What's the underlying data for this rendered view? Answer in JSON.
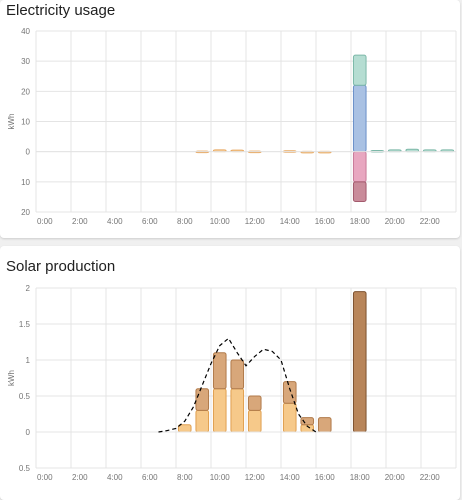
{
  "cards": {
    "electricity": {
      "title": "Electricity usage"
    },
    "solar": {
      "title": "Solar production"
    }
  },
  "colors": {
    "grid_import": "#a9c1e3",
    "grid_import_stroke": "#6a8fc8",
    "solar_consumed": "#b5ddd2",
    "solar_consumed_stroke": "#7cb8a8",
    "grid_export": "#e8a7c0",
    "grid_export_stroke": "#c87a98",
    "battery_in": "#c98b9a",
    "battery_in_stroke": "#a35a6d",
    "home_usage": "#f8d3a0",
    "home_usage_stroke": "#e8a860",
    "solar_total": "#f6c98a",
    "solar_total_stroke": "#e0a050",
    "solar_upper": "#d8a77a",
    "solar_upper_stroke": "#b07a4a",
    "solar_dark": "#b8855a",
    "solar_dark_stroke": "#7d5230",
    "forecast_line": "#000000"
  },
  "chart_data": [
    {
      "type": "bar",
      "title": "Electricity usage",
      "ylabel": "kWh",
      "ylim": [
        -20,
        40
      ],
      "y_ticks": [
        40,
        30,
        20,
        10,
        0,
        -10,
        -20
      ],
      "y_tick_labels": [
        "40",
        "30",
        "20",
        "10",
        "0",
        "10",
        "20"
      ],
      "x_tick_labels": [
        "0:00",
        "2:00",
        "4:00",
        "6:00",
        "8:00",
        "10:00",
        "12:00",
        "14:00",
        "16:00",
        "18:00",
        "20:00",
        "22:00"
      ],
      "hours": [
        0,
        1,
        2,
        3,
        4,
        5,
        6,
        7,
        8,
        9,
        10,
        11,
        12,
        13,
        14,
        15,
        16,
        17,
        18,
        19,
        20,
        21,
        22,
        23
      ],
      "series": [
        {
          "color_key": "home_usage",
          "values": [
            0,
            0,
            0,
            0,
            0,
            0,
            0,
            0,
            0,
            0.2,
            0.6,
            0.5,
            0.2,
            0,
            0.3,
            0.1,
            0.1,
            0,
            0,
            0,
            0,
            0,
            0,
            0
          ]
        },
        {
          "color_key": "grid_import",
          "values": [
            0,
            0,
            0,
            0,
            0,
            0,
            0,
            0,
            0,
            0,
            0,
            0,
            0,
            0,
            0,
            0,
            0,
            0,
            22,
            0,
            0,
            0,
            0,
            0
          ]
        },
        {
          "color_key": "solar_consumed",
          "values": [
            0,
            0,
            0,
            0,
            0,
            0,
            0,
            0,
            0,
            0,
            0,
            0,
            0,
            0,
            0,
            0,
            0,
            0,
            10,
            0.4,
            0.6,
            0.8,
            0.6,
            0.6
          ]
        },
        {
          "color_key": "grid_export",
          "values": [
            0,
            0,
            0,
            0,
            0,
            0,
            0,
            0,
            0,
            0,
            0,
            0,
            0,
            0,
            0,
            0,
            0,
            0,
            -10,
            0,
            0,
            0,
            0,
            0
          ]
        },
        {
          "color_key": "battery_in",
          "values": [
            0,
            0,
            0,
            0,
            0,
            0,
            0,
            0,
            0,
            0,
            0,
            0,
            0,
            0,
            0,
            0,
            0,
            0,
            -6.5,
            0,
            0,
            0,
            0,
            0
          ]
        }
      ],
      "grid": true
    },
    {
      "type": "bar",
      "title": "Solar production",
      "ylabel": "kWh",
      "ylim": [
        -0.5,
        2
      ],
      "y_ticks": [
        2,
        1.5,
        1,
        0.5,
        0,
        -0.5
      ],
      "y_tick_labels": [
        "2",
        "1.5",
        "1",
        "0.5",
        "0",
        "0.5"
      ],
      "x_tick_labels": [
        "0:00",
        "2:00",
        "4:00",
        "6:00",
        "8:00",
        "10:00",
        "12:00",
        "14:00",
        "16:00",
        "18:00",
        "20:00",
        "22:00"
      ],
      "hours": [
        0,
        1,
        2,
        3,
        4,
        5,
        6,
        7,
        8,
        9,
        10,
        11,
        12,
        13,
        14,
        15,
        16,
        17,
        18,
        19,
        20,
        21,
        22,
        23
      ],
      "series": [
        {
          "color_key": "solar_total",
          "values": [
            0,
            0,
            0,
            0,
            0,
            0,
            0,
            0,
            0.1,
            0.3,
            0.6,
            0.6,
            0.3,
            0,
            0.4,
            0.1,
            0,
            0,
            0,
            0,
            0,
            0,
            0,
            0
          ]
        },
        {
          "color_key": "solar_upper",
          "values": [
            0,
            0,
            0,
            0,
            0,
            0,
            0,
            0,
            0,
            0.3,
            0.5,
            0.4,
            0.2,
            0,
            0.3,
            0.1,
            0.2,
            0,
            0,
            0,
            0,
            0,
            0,
            0
          ]
        },
        {
          "color_key": "solar_dark",
          "values": [
            0,
            0,
            0,
            0,
            0,
            0,
            0,
            0,
            0,
            0,
            0,
            0,
            0,
            0,
            0,
            0,
            0,
            0,
            1.95,
            0,
            0,
            0,
            0,
            0
          ]
        }
      ],
      "forecast": {
        "hours": [
          7,
          7.5,
          8,
          8.5,
          9,
          9.5,
          10,
          10.5,
          11,
          11.5,
          12,
          12.5,
          13,
          13.5,
          14,
          14.5,
          15,
          15.5,
          16
        ],
        "values": [
          0,
          0.02,
          0.05,
          0.15,
          0.35,
          0.65,
          0.95,
          1.2,
          1.3,
          1.1,
          0.92,
          1.05,
          1.15,
          1.12,
          1.0,
          0.6,
          0.25,
          0.08,
          0
        ]
      },
      "grid": true
    }
  ]
}
